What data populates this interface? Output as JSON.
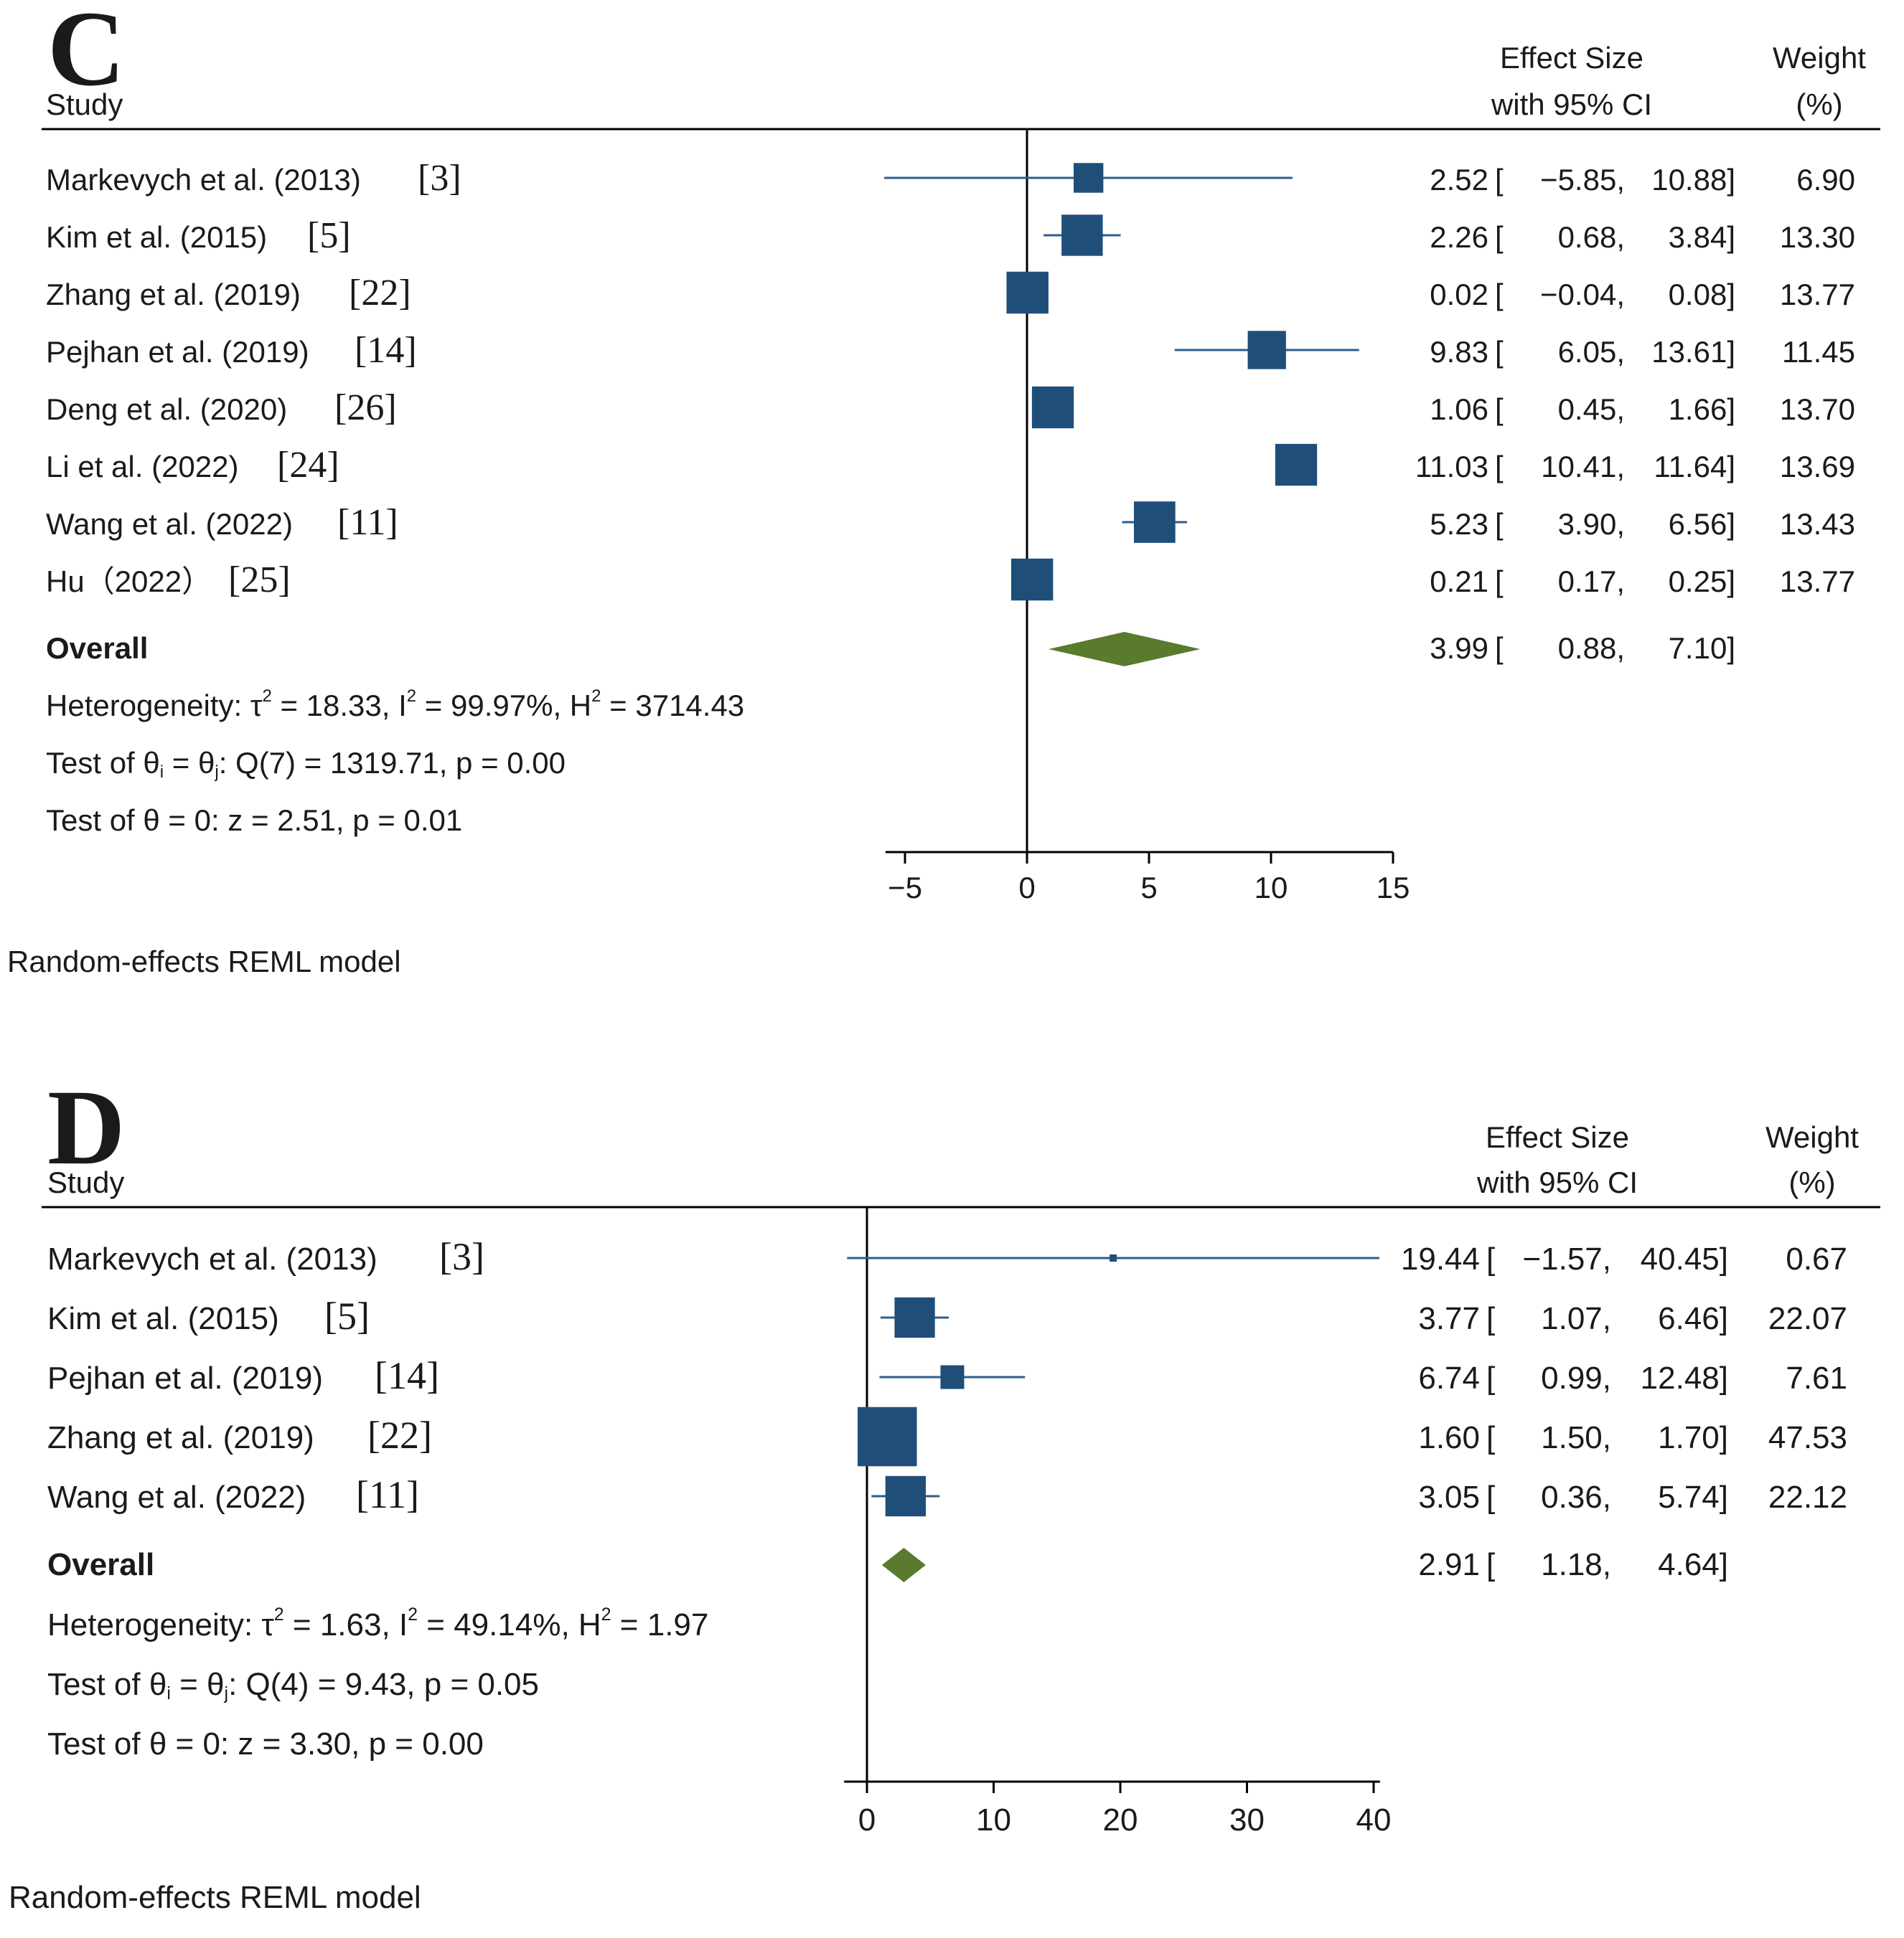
{
  "colors": {
    "marker": "#1f4e79",
    "ci_line": "#2e5e8e",
    "diamond": "#5a7a2e",
    "axis": "#000000",
    "text": "#1a1a1a"
  },
  "chart_data": [
    {
      "type": "forest",
      "panel": "C",
      "column_headers": {
        "study": "Study",
        "effect_line1": "Effect Size",
        "effect_line2": "with 95% CI",
        "weight_line1": "Weight",
        "weight_line2": "(%)"
      },
      "studies": [
        {
          "name": "Markevych et al. (2013)",
          "ref": "[3]",
          "es": 2.52,
          "lo": -5.85,
          "hi": 10.88,
          "es_text": "2.52",
          "lo_text": "−5.85,",
          "hi_text": "10.88]",
          "weight": 6.9,
          "weight_text": "6.90"
        },
        {
          "name": "Kim et al. (2015)",
          "ref": "[5]",
          "es": 2.26,
          "lo": 0.68,
          "hi": 3.84,
          "es_text": "2.26",
          "lo_text": "0.68,",
          "hi_text": "3.84]",
          "weight": 13.3,
          "weight_text": "13.30"
        },
        {
          "name": "Zhang et al. (2019)",
          "ref": "[22]",
          "es": 0.02,
          "lo": -0.04,
          "hi": 0.08,
          "es_text": "0.02",
          "lo_text": "−0.04,",
          "hi_text": "0.08]",
          "weight": 13.77,
          "weight_text": "13.77"
        },
        {
          "name": "Pejhan et al. (2019)",
          "ref": "[14]",
          "es": 9.83,
          "lo": 6.05,
          "hi": 13.61,
          "es_text": "9.83",
          "lo_text": "6.05,",
          "hi_text": "13.61]",
          "weight": 11.45,
          "weight_text": "11.45"
        },
        {
          "name": "Deng et al. (2020)",
          "ref": "[26]",
          "es": 1.06,
          "lo": 0.45,
          "hi": 1.66,
          "es_text": "1.06",
          "lo_text": "0.45,",
          "hi_text": "1.66]",
          "weight": 13.7,
          "weight_text": "13.70"
        },
        {
          "name": "Li et al. (2022)",
          "ref": "[24]",
          "es": 11.03,
          "lo": 10.41,
          "hi": 11.64,
          "es_text": "11.03",
          "lo_text": "10.41,",
          "hi_text": "11.64]",
          "weight": 13.69,
          "weight_text": "13.69"
        },
        {
          "name": "Wang et al. (2022)",
          "ref": "[11]",
          "es": 5.23,
          "lo": 3.9,
          "hi": 6.56,
          "es_text": "5.23",
          "lo_text": "3.90,",
          "hi_text": "6.56]",
          "weight": 13.43,
          "weight_text": "13.43"
        },
        {
          "name": "Hu（2022）",
          "ref": "[25]",
          "es": 0.21,
          "lo": 0.17,
          "hi": 0.25,
          "es_text": "0.21",
          "lo_text": "0.17,",
          "hi_text": "0.25]",
          "weight": 13.77,
          "weight_text": "13.77"
        }
      ],
      "overall": {
        "label": "Overall",
        "es": 3.99,
        "lo": 0.88,
        "hi": 7.1,
        "es_text": "3.99",
        "lo_text": "0.88,",
        "hi_text": "7.10]"
      },
      "heterogeneity": {
        "prefix": "Heterogeneity: τ",
        "tau2": " = 18.33, I",
        "i2": " = 99.97%, H",
        "h2": " = 3714.43"
      },
      "test_q": {
        "prefix": "Test of θ",
        "mid": " = θ",
        "rest": ": Q(7) = 1319.71, p = 0.00"
      },
      "test_z": "Test of θ = 0: z = 2.51, p = 0.01",
      "x_ticks": [
        -5,
        0,
        5,
        10,
        15
      ],
      "x_tick_labels": [
        "−5",
        "0",
        "5",
        "10",
        "15"
      ],
      "xlim": [
        -5.8,
        15
      ],
      "null_line": 0,
      "footer": "Random-effects REML model"
    },
    {
      "type": "forest",
      "panel": "D",
      "column_headers": {
        "study": "Study",
        "effect_line1": "Effect Size",
        "effect_line2": "with 95% CI",
        "weight_line1": "Weight",
        "weight_line2": "(%)"
      },
      "studies": [
        {
          "name": "Markevych et al. (2013)",
          "ref": "[3]",
          "es": 19.44,
          "lo": -1.57,
          "hi": 40.45,
          "es_text": "19.44",
          "lo_text": "−1.57,",
          "hi_text": "40.45]",
          "weight": 0.67,
          "weight_text": "0.67"
        },
        {
          "name": "Kim et al. (2015)",
          "ref": "[5]",
          "es": 3.77,
          "lo": 1.07,
          "hi": 6.46,
          "es_text": "3.77",
          "lo_text": "1.07,",
          "hi_text": "6.46]",
          "weight": 22.07,
          "weight_text": "22.07"
        },
        {
          "name": "Pejhan et al. (2019)",
          "ref": "[14]",
          "es": 6.74,
          "lo": 0.99,
          "hi": 12.48,
          "es_text": "6.74",
          "lo_text": "0.99,",
          "hi_text": "12.48]",
          "weight": 7.61,
          "weight_text": "7.61"
        },
        {
          "name": "Zhang et al. (2019)",
          "ref": "[22]",
          "es": 1.6,
          "lo": 1.5,
          "hi": 1.7,
          "es_text": "1.60",
          "lo_text": "1.50,",
          "hi_text": "1.70]",
          "weight": 47.53,
          "weight_text": "47.53"
        },
        {
          "name": "Wang et al. (2022)",
          "ref": "[11]",
          "es": 3.05,
          "lo": 0.36,
          "hi": 5.74,
          "es_text": "3.05",
          "lo_text": "0.36,",
          "hi_text": "5.74]",
          "weight": 22.12,
          "weight_text": "22.12"
        }
      ],
      "overall": {
        "label": "Overall",
        "es": 2.91,
        "lo": 1.18,
        "hi": 4.64,
        "es_text": "2.91",
        "lo_text": "1.18,",
        "hi_text": "4.64]"
      },
      "heterogeneity": {
        "prefix": "Heterogeneity: τ",
        "tau2": " = 1.63, I",
        "i2": " = 49.14%, H",
        "h2": " = 1.97"
      },
      "test_q": {
        "prefix": "Test of θ",
        "mid": " = θ",
        "rest": ": Q(4) = 9.43, p = 0.05"
      },
      "test_z": "Test of θ = 0: z = 3.30, p = 0.00",
      "x_ticks": [
        0,
        10,
        20,
        30,
        40
      ],
      "x_tick_labels": [
        "0",
        "10",
        "20",
        "30",
        "40"
      ],
      "xlim": [
        -1.8,
        40.5
      ],
      "null_line": 0,
      "footer": "Random-effects REML model"
    }
  ]
}
